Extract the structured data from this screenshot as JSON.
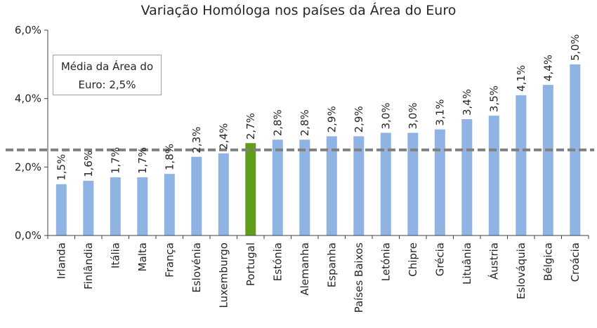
{
  "chart_data": {
    "type": "bar",
    "title": "Variação Homóloga nos países da Área do Euro",
    "categories": [
      "Irlanda",
      "Finlândia",
      "Itália",
      "Malta",
      "França",
      "Eslovénia",
      "Luxemburgo",
      "Portugal",
      "Estónia",
      "Alemanha",
      "Espanha",
      "Países Baixos",
      "Letónia",
      "Chipre",
      "Grécia",
      "Lituânia",
      "Áustria",
      "Eslováquia",
      "Bélgica",
      "Croácia"
    ],
    "values": [
      1.5,
      1.6,
      1.7,
      1.7,
      1.8,
      2.3,
      2.4,
      2.7,
      2.8,
      2.8,
      2.9,
      2.9,
      3.0,
      3.0,
      3.1,
      3.4,
      3.5,
      4.1,
      4.4,
      5.0
    ],
    "value_labels": [
      "1,5%",
      "1,6%",
      "1,7%",
      "1,7%",
      "1,8%",
      "2,3%",
      "2,4%",
      "2,7%",
      "2,8%",
      "2,8%",
      "2,9%",
      "2,9%",
      "3,0%",
      "3,0%",
      "3,1%",
      "3,4%",
      "3,5%",
      "4,1%",
      "4,4%",
      "5,0%"
    ],
    "highlight_category": "Portugal",
    "colors": {
      "bar": "#8fb4e3",
      "highlight": "#5f9e1a",
      "reference_line": "#808080",
      "axis": "#404040"
    },
    "ylim": [
      0,
      6
    ],
    "yticks": [
      0,
      2,
      4,
      6
    ],
    "ytick_labels": [
      "0,0%",
      "2,0%",
      "4,0%",
      "6,0%"
    ],
    "reference_line": {
      "value": 2.5,
      "style": "dashed",
      "label_line1": "Média da Área do",
      "label_line2": "Euro: 2,5%"
    },
    "grid": false,
    "legend": false,
    "xlabel": "",
    "ylabel": ""
  }
}
